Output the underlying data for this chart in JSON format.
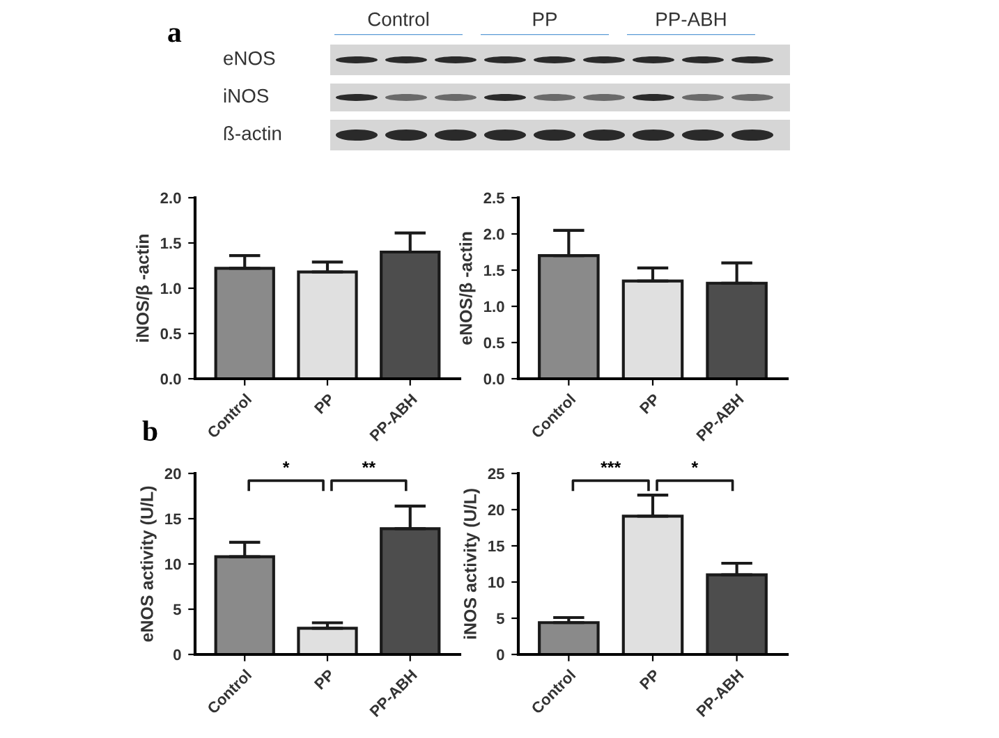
{
  "chart_data": [
    {
      "type": "other",
      "title": "a",
      "annotations": [
        "Control",
        "PP",
        "PP-ABH",
        "eNOS",
        "iNOS",
        "ß-actin"
      ]
    },
    {
      "type": "bar",
      "categories": [
        "Control",
        "PP",
        "PP-ABH"
      ],
      "ylabel": "iNOS/β -actin",
      "values": [
        1.22,
        1.18,
        1.4
      ],
      "errors": [
        [
          1.22,
          1.36
        ],
        [
          1.18,
          1.29
        ],
        [
          1.4,
          1.61
        ]
      ],
      "colors": [
        "#8a8a8a",
        "#e0e0e0",
        "#4d4d4d"
      ],
      "ylim": [
        0,
        2.0
      ],
      "yticks": [
        {
          "value": 0,
          "label": "0.0"
        },
        0.5,
        {
          "value": 1,
          "label": "1.0"
        },
        1.5,
        {
          "value": 2,
          "label": "2.0"
        }
      ],
      "grid": false,
      "legend": false
    },
    {
      "type": "bar",
      "categories": [
        "Control",
        "PP",
        "PP-ABH"
      ],
      "ylabel": "eNOS/β -actin",
      "values": [
        1.7,
        1.35,
        1.32
      ],
      "errors": [
        [
          1.7,
          2.05
        ],
        [
          1.35,
          1.53
        ],
        [
          1.32,
          1.6
        ]
      ],
      "colors": [
        "#8a8a8a",
        "#e0e0e0",
        "#4d4d4d"
      ],
      "ylim": [
        0,
        2.5
      ],
      "yticks": [
        {
          "value": 0,
          "label": "0.0"
        },
        0.5,
        {
          "value": 1,
          "label": "1.0"
        },
        1.5,
        {
          "value": 2,
          "label": "2.0"
        },
        2.5
      ],
      "grid": false,
      "legend": false
    },
    {
      "type": "bar",
      "title": "b",
      "categories": [
        "Control",
        "PP",
        "PP-ABH"
      ],
      "ylabel": "eNOS activity (U/L)",
      "values": [
        10.8,
        2.9,
        13.9
      ],
      "errors": [
        [
          10.8,
          12.4
        ],
        [
          2.9,
          3.5
        ],
        [
          13.9,
          16.4
        ]
      ],
      "colors": [
        "#8a8a8a",
        "#e0e0e0",
        "#4d4d4d"
      ],
      "ylim": [
        0,
        20
      ],
      "yticks": [
        0,
        5,
        10,
        15,
        20
      ],
      "grid": false,
      "legend": false,
      "annotations": [
        "*",
        "**"
      ]
    },
    {
      "type": "bar",
      "categories": [
        "Control",
        "PP",
        "PP-ABH"
      ],
      "ylabel": "iNOS activity (U/L)",
      "values": [
        4.4,
        19.1,
        11.0
      ],
      "errors": [
        [
          4.4,
          5.1
        ],
        [
          19.1,
          22.0
        ],
        [
          11.0,
          12.6
        ]
      ],
      "colors": [
        "#8a8a8a",
        "#e0e0e0",
        "#4d4d4d"
      ],
      "ylim": [
        0,
        25
      ],
      "yticks": [
        0,
        5,
        10,
        15,
        20,
        25
      ],
      "grid": false,
      "legend": false,
      "annotations": [
        "***",
        "*"
      ]
    }
  ]
}
